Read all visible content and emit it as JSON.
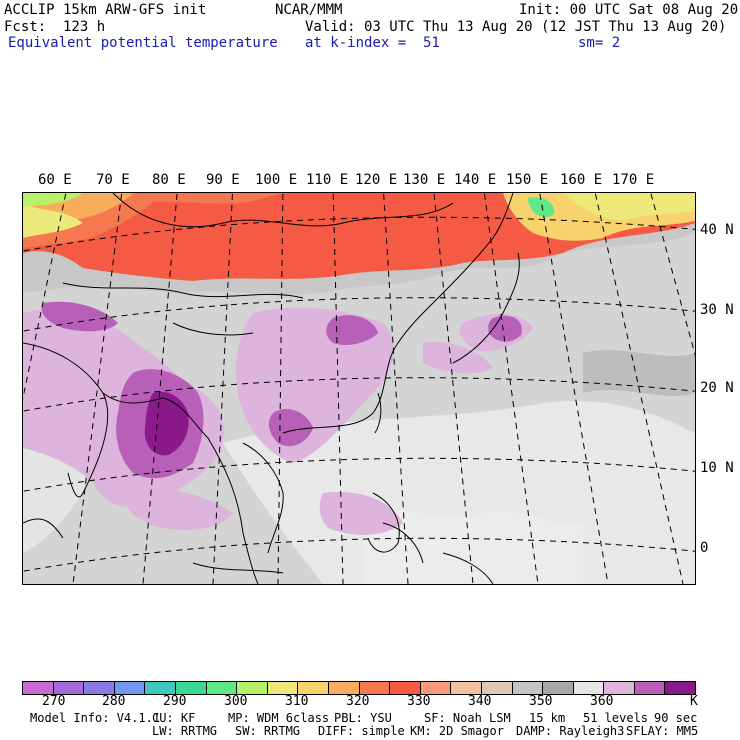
{
  "header": {
    "model_line": "ACCLIP 15km ARW-GFS init",
    "fcst_line": "Fcst:  123 h",
    "field_line": "Equivalent potential temperature",
    "org": "NCAR/MMM",
    "init_line": "Init: 00 UTC Sat 08 Aug 20",
    "valid_line": "Valid: 03 UTC Thu 13 Aug 20 (12 JST Thu 13 Aug 20)",
    "level_line": "at k-index =  51",
    "smooth_line": "sm= 2"
  },
  "map": {
    "longitude_labels": [
      "60 E",
      "70 E",
      "80 E",
      "90 E",
      "100 E",
      "110 E",
      "120 E",
      "130 E",
      "140 E",
      "150 E",
      "160 E",
      "170 E"
    ],
    "latitude_labels": [
      "40 N",
      "30 N",
      "20 N",
      "10 N",
      "0"
    ]
  },
  "colorbar": {
    "colors": [
      "#c86ad2",
      "#a66ad8",
      "#8a7ae6",
      "#6f98ee",
      "#3ec8c0",
      "#3ad79a",
      "#5ee88a",
      "#b8f06a",
      "#ece87a",
      "#f8d26c",
      "#f8ad5c",
      "#f6784e",
      "#f45a44",
      "#f89a7a",
      "#f4c0a0",
      "#dcc8b8",
      "#c4c4c4",
      "#a8a8a8",
      "#e6e6e6",
      "#dcb4dc",
      "#b860b8",
      "#8a1a8a"
    ],
    "labels": [
      "270",
      "280",
      "290",
      "300",
      "310",
      "320",
      "330",
      "340",
      "350",
      "360"
    ],
    "unit": "K"
  },
  "footer": {
    "line1": [
      "Model Info: V4.1.1",
      "CU: KF",
      "MP: WDM 6class",
      "PBL: YSU",
      "SF: Noah LSM",
      "15 km",
      "51 levels",
      "90 sec"
    ],
    "line2": [
      "LW: RRTMG",
      "SW: RRTMG",
      "DIFF: simple",
      "KM: 2D Smagor",
      "DAMP: Rayleigh3",
      "SFLAY: MM5"
    ]
  }
}
